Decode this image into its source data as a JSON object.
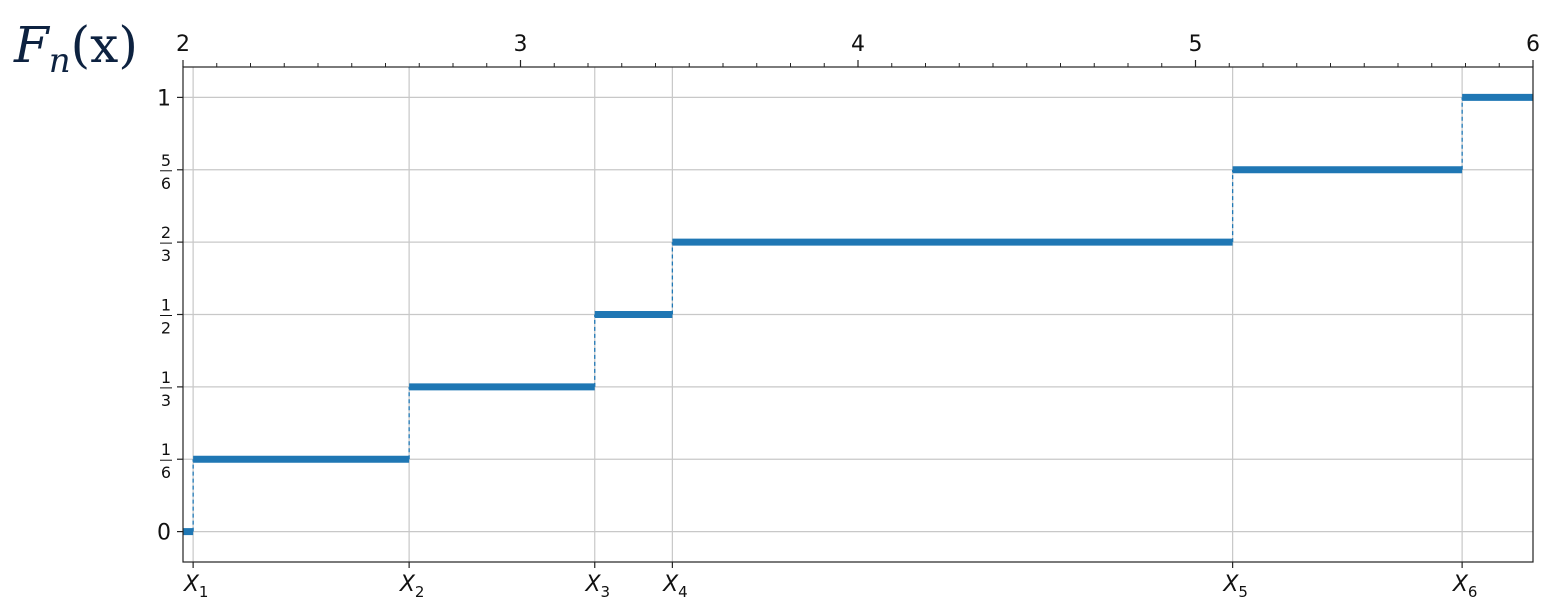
{
  "chart_data": {
    "type": "line",
    "step": true,
    "ylabel": "F",
    "ylabel_sub": "n",
    "ylabel_arg": "(x)",
    "xlim": [
      2,
      6
    ],
    "ylim": [
      -0.07,
      1.07
    ],
    "grid": true,
    "top_ticks": [
      {
        "value": 2,
        "label": "2"
      },
      {
        "value": 3,
        "label": "3"
      },
      {
        "value": 4,
        "label": "4"
      },
      {
        "value": 5,
        "label": "5"
      },
      {
        "value": 6,
        "label": "6"
      }
    ],
    "y_ticks": [
      {
        "value": 0,
        "label": "0"
      },
      {
        "value": 0.1667,
        "num": "1",
        "den": "6"
      },
      {
        "value": 0.3333,
        "num": "1",
        "den": "3"
      },
      {
        "value": 0.5,
        "num": "1",
        "den": "2"
      },
      {
        "value": 0.6667,
        "num": "2",
        "den": "3"
      },
      {
        "value": 0.8333,
        "num": "5",
        "den": "6"
      },
      {
        "value": 1,
        "label": "1"
      }
    ],
    "sample_points": [
      {
        "x": 2.03,
        "label": "X",
        "sub": "1"
      },
      {
        "x": 2.67,
        "label": "X",
        "sub": "2"
      },
      {
        "x": 3.22,
        "label": "X",
        "sub": "3"
      },
      {
        "x": 3.45,
        "label": "X",
        "sub": "4"
      },
      {
        "x": 5.11,
        "label": "X",
        "sub": "5"
      },
      {
        "x": 5.79,
        "label": "X",
        "sub": "6"
      }
    ],
    "steps": [
      {
        "x_start": 2.0,
        "x_end": 2.03,
        "y": 0
      },
      {
        "x_start": 2.03,
        "x_end": 2.67,
        "y": 0.1667
      },
      {
        "x_start": 2.67,
        "x_end": 3.22,
        "y": 0.3333
      },
      {
        "x_start": 3.22,
        "x_end": 3.45,
        "y": 0.5
      },
      {
        "x_start": 3.45,
        "x_end": 5.11,
        "y": 0.6667
      },
      {
        "x_start": 5.11,
        "x_end": 5.79,
        "y": 0.8333
      },
      {
        "x_start": 5.79,
        "x_end": 6.0,
        "y": 1
      }
    ],
    "colors": {
      "step": "#1f77b4",
      "grid": "#c8c8c8",
      "label": "#0d2240"
    }
  }
}
